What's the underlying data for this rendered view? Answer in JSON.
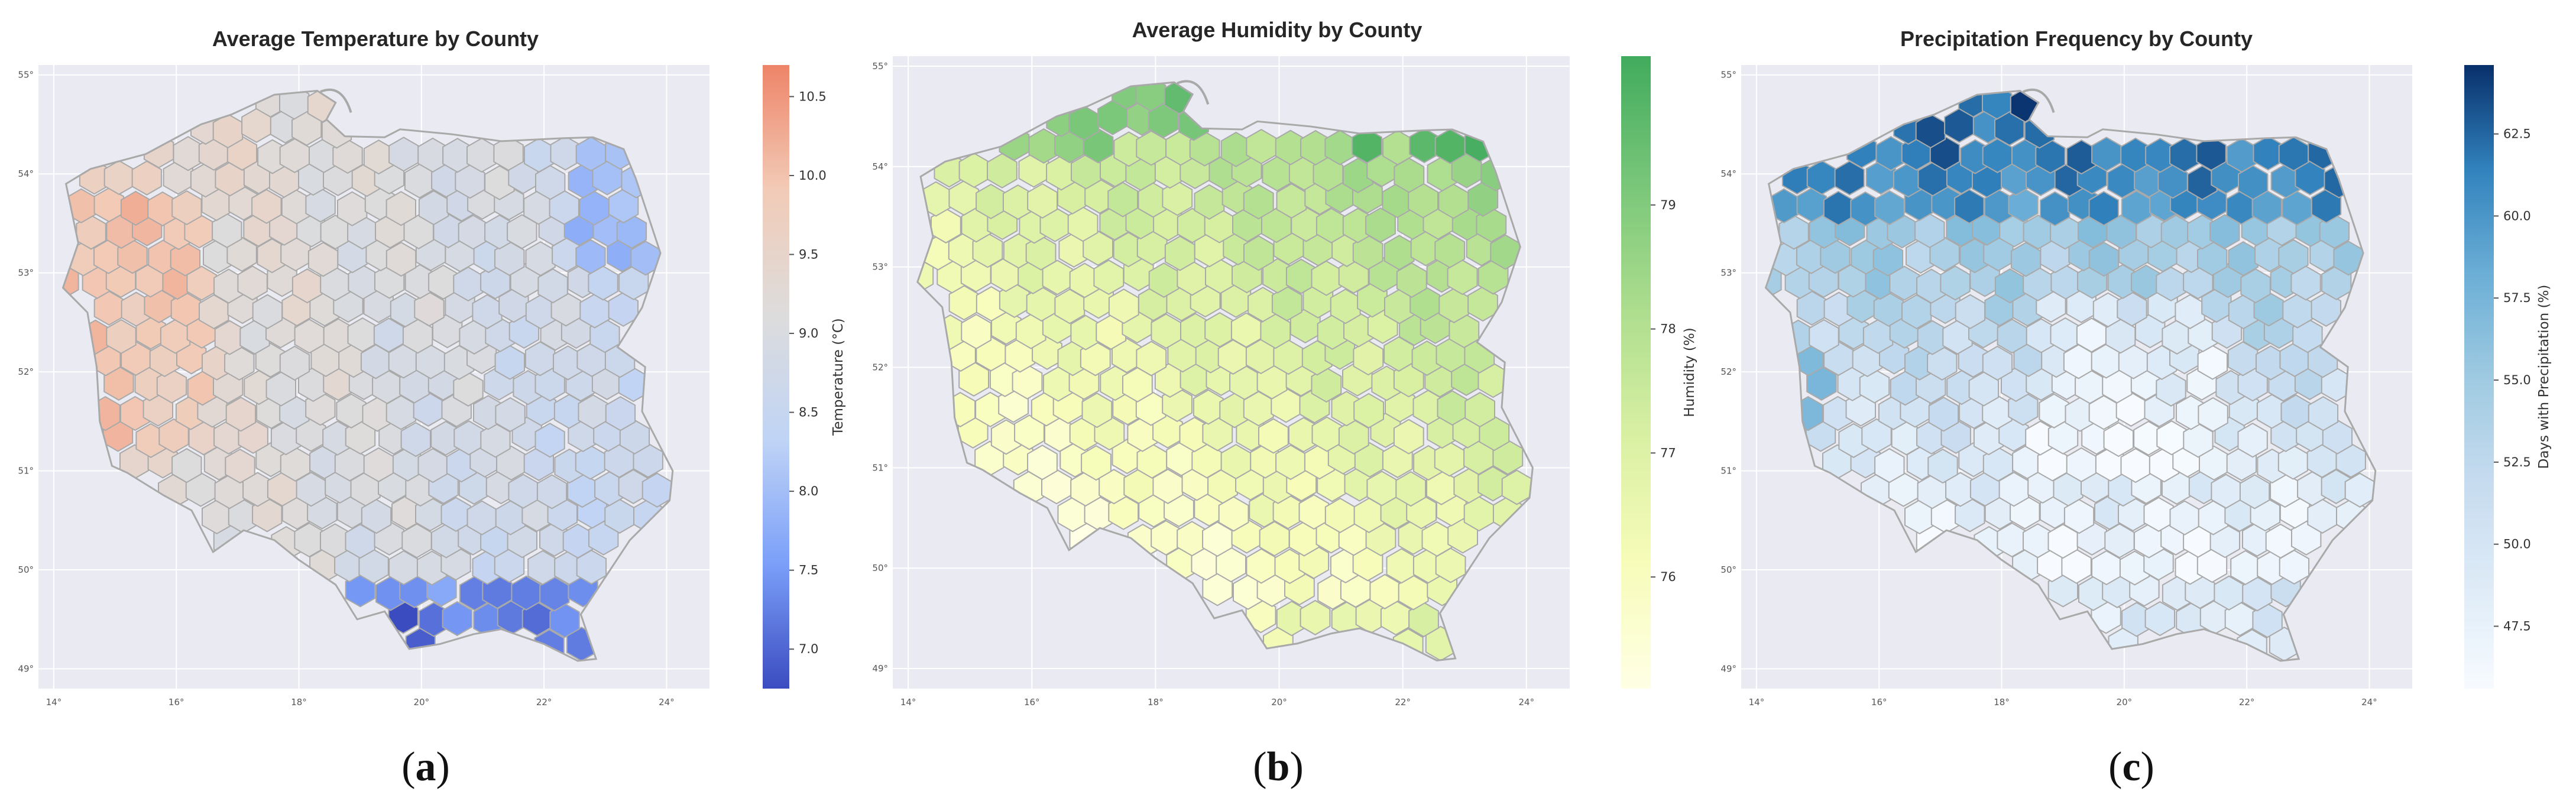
{
  "figure": {
    "panels": [
      {
        "id": "a",
        "letter": "a",
        "title": "Average Temperature by County",
        "colorbar": {
          "label": "Temperature (°C)",
          "ticks": [
            "7.0",
            "7.5",
            "8.0",
            "8.5",
            "9.0",
            "9.5",
            "10.0",
            "10.5"
          ],
          "range": [
            6.75,
            10.7
          ],
          "palette": [
            "#3b4cc0",
            "#7b9ff9",
            "#c0d4f5",
            "#dddcdc",
            "#f2cbb7",
            "#ee8468"
          ]
        },
        "x_ticks": [
          "14°",
          "16°",
          "18°",
          "20°",
          "22°",
          "24°"
        ],
        "y_ticks": [
          "55°",
          "54°",
          "53°",
          "52°",
          "51°",
          "50°",
          "49°"
        ]
      },
      {
        "id": "b",
        "letter": "b",
        "title": "Average Humidity by County",
        "colorbar": {
          "label": "Humidity (%)",
          "ticks": [
            "76",
            "77",
            "78",
            "79"
          ],
          "range": [
            75.1,
            80.2
          ],
          "palette": [
            "#ffffe5",
            "#f7fcb9",
            "#d9f0a3",
            "#addd8e",
            "#78c679",
            "#41ab5d"
          ]
        },
        "x_ticks": [
          "14°",
          "16°",
          "18°",
          "20°",
          "22°",
          "24°"
        ],
        "y_ticks": [
          "55°",
          "54°",
          "53°",
          "52°",
          "51°",
          "50°",
          "49°"
        ]
      },
      {
        "id": "c",
        "letter": "c",
        "title": "Precipitation Frequency by County",
        "colorbar": {
          "label": "Days with Precipitation (%)",
          "ticks": [
            "47.5",
            "50.0",
            "52.5",
            "55.0",
            "57.5",
            "60.0",
            "62.5"
          ],
          "range": [
            45.6,
            64.6
          ],
          "palette": [
            "#f7fbff",
            "#deebf7",
            "#c6dbef",
            "#9ecae1",
            "#6baed6",
            "#3182bd",
            "#08306b"
          ]
        },
        "x_ticks": [
          "14°",
          "16°",
          "18°",
          "20°",
          "22°",
          "24°"
        ],
        "y_ticks": [
          "55°",
          "54°",
          "53°",
          "52°",
          "51°",
          "50°",
          "49°"
        ]
      }
    ],
    "colors": {
      "axes_background": "#eaeaf2",
      "grid": "#ffffff",
      "county_border": "#a9a9a9"
    }
  }
}
